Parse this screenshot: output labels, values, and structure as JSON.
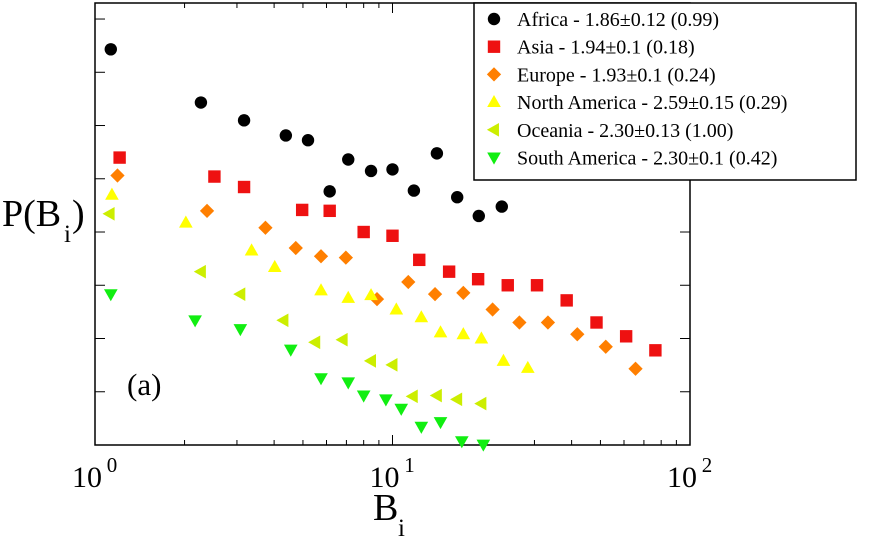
{
  "chart_data": {
    "type": "scatter",
    "panel_label": "(a)",
    "xlabel": {
      "base": "B",
      "sub": "i"
    },
    "ylabel": {
      "base": "P(B",
      "sub": "i",
      "close": ")"
    },
    "x_scale": "log",
    "y_scale": "log",
    "xlim": [
      1,
      100
    ],
    "ylim": [
      1e-05,
      2000
    ],
    "x_ticks": [
      {
        "value": 1,
        "base": "10",
        "exp": "0"
      },
      {
        "value": 10,
        "base": "10",
        "exp": "1"
      },
      {
        "value": 100,
        "base": "10",
        "exp": "2"
      }
    ],
    "y_tick_labels_shown": false,
    "grid": false,
    "legend": {
      "placement": "top-right"
    },
    "series": [
      {
        "name": "Africa - 1.86±0.12 (0.99)",
        "marker": "circle",
        "color": "#000000",
        "points": [
          [
            1.13,
            270
          ],
          [
            2.27,
            27
          ],
          [
            3.17,
            12.5
          ],
          [
            4.38,
            6.5
          ],
          [
            5.2,
            5.3
          ],
          [
            6.15,
            0.58
          ],
          [
            7.1,
            2.3
          ],
          [
            8.47,
            1.4
          ],
          [
            10.0,
            1.5
          ],
          [
            11.8,
            0.6
          ],
          [
            14.1,
            3.0
          ],
          [
            16.5,
            0.45
          ],
          [
            19.5,
            0.2
          ],
          [
            23.3,
            0.3
          ]
        ]
      },
      {
        "name": "Asia - 1.94±0.1 (0.18)",
        "marker": "square",
        "color": "#ee1111",
        "points": [
          [
            1.21,
            2.5
          ],
          [
            2.52,
            1.1
          ],
          [
            3.17,
            0.7
          ],
          [
            4.97,
            0.26
          ],
          [
            6.15,
            0.25
          ],
          [
            8.0,
            0.1
          ],
          [
            10.0,
            0.085
          ],
          [
            12.3,
            0.03
          ],
          [
            15.5,
            0.018
          ],
          [
            19.4,
            0.013
          ],
          [
            24.4,
            0.01
          ],
          [
            30.6,
            0.01
          ],
          [
            38.5,
            0.0052
          ],
          [
            48.5,
            0.002
          ],
          [
            61.0,
            0.0011
          ],
          [
            76.5,
            0.0006
          ]
        ]
      },
      {
        "name": "Europe - 1.93±0.1 (0.24)",
        "marker": "diamond",
        "color": "#ff7f00",
        "points": [
          [
            1.19,
            1.15
          ],
          [
            2.38,
            0.25
          ],
          [
            3.74,
            0.12
          ],
          [
            4.73,
            0.05
          ],
          [
            5.75,
            0.035
          ],
          [
            6.97,
            0.033
          ],
          [
            8.87,
            0.0055
          ],
          [
            11.3,
            0.0115
          ],
          [
            13.9,
            0.0068
          ],
          [
            17.3,
            0.0072
          ],
          [
            21.7,
            0.0035
          ],
          [
            26.7,
            0.002
          ],
          [
            33.3,
            0.002
          ],
          [
            41.8,
            0.0012
          ],
          [
            52.1,
            0.0007
          ],
          [
            65.6,
            0.00027
          ]
        ]
      },
      {
        "name": "North America - 2.59±0.15 (0.29)",
        "marker": "triangle-up",
        "color": "#ffff00",
        "points": [
          [
            1.14,
            0.5
          ],
          [
            2.02,
            0.15
          ],
          [
            3.36,
            0.045
          ],
          [
            4.02,
            0.022
          ],
          [
            5.75,
            0.008
          ],
          [
            7.1,
            0.0058
          ],
          [
            8.47,
            0.0065
          ],
          [
            10.3,
            0.0035
          ],
          [
            12.5,
            0.0025
          ],
          [
            14.5,
            0.0013
          ],
          [
            17.3,
            0.0012
          ],
          [
            19.9,
            0.001
          ],
          [
            23.6,
            0.00038
          ],
          [
            28.5,
            0.00028
          ]
        ]
      },
      {
        "name": "Oceania - 2.30±0.13 (1.00)",
        "marker": "triangle-left",
        "color": "#ccee00",
        "points": [
          [
            1.12,
            0.22
          ],
          [
            2.27,
            0.018
          ],
          [
            3.08,
            0.0068
          ],
          [
            4.3,
            0.0022
          ],
          [
            5.5,
            0.00085
          ],
          [
            6.8,
            0.00095
          ],
          [
            8.47,
            0.00038
          ],
          [
            10.0,
            0.00032
          ],
          [
            11.7,
            8.2e-05
          ],
          [
            14.1,
            8.5e-05
          ],
          [
            16.5,
            7.2e-05
          ],
          [
            19.9,
            6e-05
          ]
        ]
      },
      {
        "name": "South America - 2.30±0.1 (0.42)",
        "marker": "triangle-down",
        "color": "#11ee11",
        "points": [
          [
            1.13,
            0.0068
          ],
          [
            2.17,
            0.0022
          ],
          [
            3.08,
            0.0015
          ],
          [
            4.55,
            0.00062
          ],
          [
            5.75,
            0.00018
          ],
          [
            7.1,
            0.00015
          ],
          [
            8.0,
            8.5e-05
          ],
          [
            9.5,
            7.2e-05
          ],
          [
            10.7,
            4.8e-05
          ],
          [
            12.5,
            2.2e-05
          ],
          [
            14.5,
            2.7e-05
          ],
          [
            17.1,
            1.18e-05
          ],
          [
            20.2,
            1.02e-05
          ]
        ]
      }
    ]
  }
}
